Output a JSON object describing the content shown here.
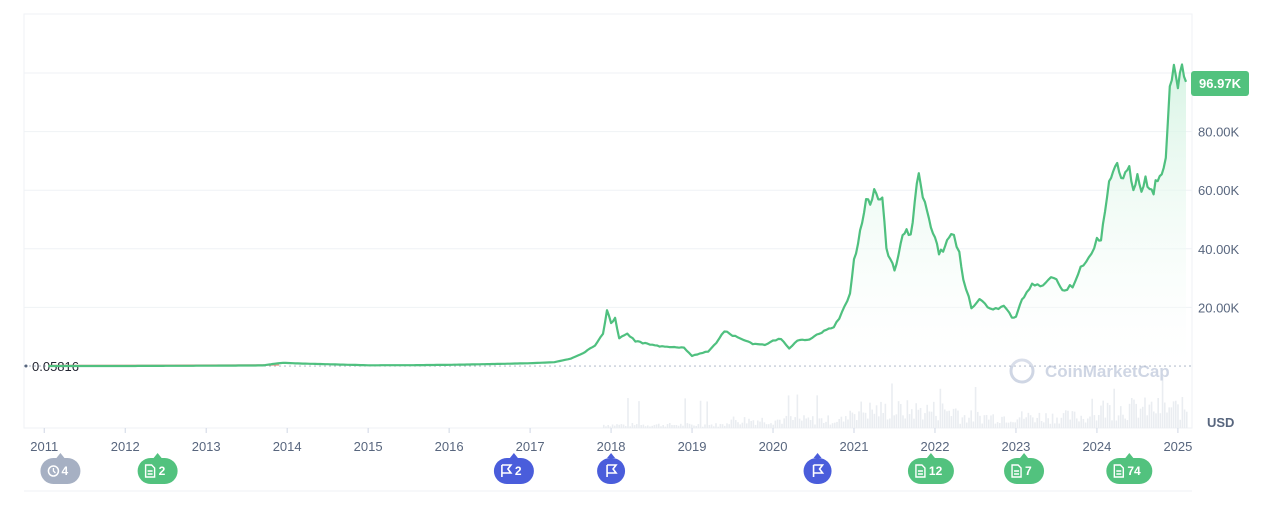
{
  "colors": {
    "line": "#16c784",
    "line_stroke": "#4fc07f",
    "fill_top": "#d4f3e2",
    "price_tag_bg": "#52c27e",
    "marker_news": "#52c27e",
    "marker_event": "#4a5ddb",
    "marker_history": "#a6b0c3",
    "grid": "#eff2f5",
    "axis_text": "#58667e",
    "volume": "#eaedf1"
  },
  "chart_data": {
    "type": "area",
    "currency": "USD",
    "current_price_label": "96.97K",
    "base_price_label": "0.05816",
    "ylim": [
      -20000,
      110000
    ],
    "y_ticks": [
      {
        "value": 20000,
        "label": "20.00K"
      },
      {
        "value": 40000,
        "label": "40.00K"
      },
      {
        "value": 60000,
        "label": "60.00K"
      },
      {
        "value": 80000,
        "label": "80.00K"
      }
    ],
    "x_range": [
      2010.75,
      2025.1
    ],
    "x_ticks": [
      "2011",
      "2012",
      "2013",
      "2014",
      "2015",
      "2016",
      "2017",
      "2018",
      "2019",
      "2020",
      "2021",
      "2022",
      "2023",
      "2024",
      "2025"
    ],
    "series": [
      {
        "x": [
          2011.05,
          2012.0,
          2013.0,
          2013.7,
          2013.85,
          2013.95,
          2014.1,
          2014.5,
          2015.0,
          2015.5,
          2016.0,
          2016.5,
          2017.0,
          2017.3,
          2017.5,
          2017.65,
          2017.8,
          2017.9,
          2017.95,
          2018.0,
          2018.05,
          2018.1,
          2018.2,
          2018.3,
          2018.45,
          2018.6,
          2018.75,
          2018.9,
          2019.0,
          2019.2,
          2019.3,
          2019.4,
          2019.5,
          2019.6,
          2019.75,
          2019.9,
          2020.0,
          2020.1,
          2020.2,
          2020.3,
          2020.45,
          2020.6,
          2020.75,
          2020.85,
          2020.95,
          2021.0,
          2021.05,
          2021.1,
          2021.15,
          2021.2,
          2021.25,
          2021.3,
          2021.35,
          2021.4,
          2021.45,
          2021.5,
          2021.55,
          2021.6,
          2021.65,
          2021.7,
          2021.75,
          2021.8,
          2021.85,
          2021.9,
          2021.95,
          2022.0,
          2022.05,
          2022.1,
          2022.15,
          2022.2,
          2022.3,
          2022.35,
          2022.45,
          2022.55,
          2022.65,
          2022.75,
          2022.85,
          2022.95,
          2023.0,
          2023.05,
          2023.1,
          2023.2,
          2023.3,
          2023.4,
          2023.5,
          2023.55,
          2023.6,
          2023.7,
          2023.8,
          2023.9,
          2024.0,
          2024.05,
          2024.1,
          2024.15,
          2024.2,
          2024.25,
          2024.3,
          2024.35,
          2024.4,
          2024.45,
          2024.5,
          2024.55,
          2024.6,
          2024.65,
          2024.7,
          2024.75,
          2024.8,
          2024.85,
          2024.9,
          2024.95,
          2025.0,
          2025.05,
          2025.1
        ],
        "y": [
          1,
          5,
          100,
          200,
          800,
          1100,
          900,
          600,
          250,
          270,
          400,
          650,
          950,
          1300,
          2500,
          4300,
          7000,
          11000,
          19000,
          14500,
          16500,
          9500,
          11000,
          8500,
          7500,
          6800,
          6500,
          6200,
          3500,
          5000,
          8000,
          12000,
          10500,
          9500,
          7500,
          7200,
          8500,
          9300,
          6000,
          8800,
          9200,
          11500,
          13500,
          18000,
          25000,
          36000,
          42000,
          50000,
          57000,
          55000,
          61000,
          56000,
          58000,
          40000,
          36000,
          33000,
          38000,
          44000,
          47000,
          44000,
          55000,
          67000,
          58000,
          52000,
          48000,
          44000,
          38000,
          40000,
          43000,
          46000,
          39000,
          30000,
          20000,
          23000,
          20000,
          19500,
          20500,
          16500,
          17000,
          21000,
          23500,
          28000,
          27000,
          30000,
          29500,
          27000,
          26000,
          27500,
          34000,
          37000,
          43000,
          43000,
          52000,
          62000,
          68000,
          69000,
          63000,
          66000,
          67000,
          60000,
          64000,
          59000,
          64000,
          60000,
          60000,
          64000,
          67000,
          70000,
          95000,
          102000,
          97000,
          102000,
          97000
        ]
      }
    ]
  },
  "event_markers": [
    {
      "type": "history",
      "year": 2011.2,
      "label": "4"
    },
    {
      "type": "news",
      "year": 2012.4,
      "label": "2"
    },
    {
      "type": "event",
      "year": 2016.8,
      "label": "2"
    },
    {
      "type": "event",
      "year": 2018.0,
      "label": ""
    },
    {
      "type": "event",
      "year": 2020.55,
      "label": ""
    },
    {
      "type": "news",
      "year": 2021.95,
      "label": "12"
    },
    {
      "type": "news",
      "year": 2023.1,
      "label": "7"
    },
    {
      "type": "news",
      "year": 2024.4,
      "label": "74"
    }
  ],
  "watermark": "CoinMarketCap"
}
